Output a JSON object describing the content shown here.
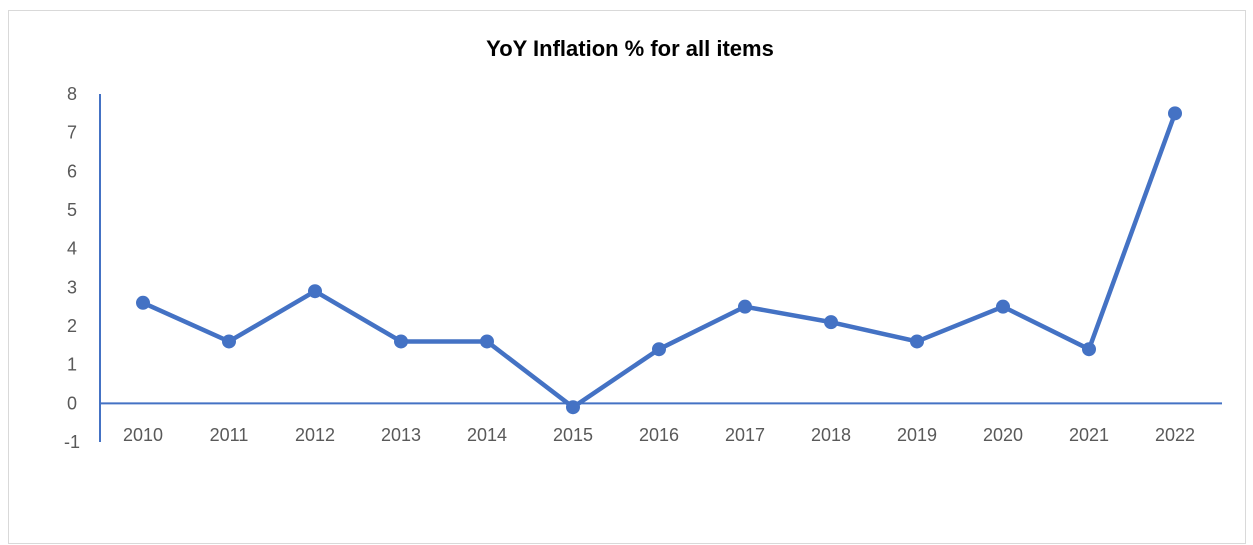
{
  "chart_data": {
    "type": "line",
    "title": "YoY Inflation % for all items",
    "xlabel": "",
    "ylabel": "",
    "categories": [
      "2010",
      "2011",
      "2012",
      "2013",
      "2014",
      "2015",
      "2016",
      "2017",
      "2018",
      "2019",
      "2020",
      "2021",
      "2022"
    ],
    "series": [
      {
        "values": [
          2.6,
          1.6,
          2.9,
          1.6,
          1.6,
          -0.1,
          1.4,
          2.5,
          2.1,
          1.6,
          2.5,
          1.4,
          7.5
        ]
      }
    ],
    "ylim": [
      -1,
      8
    ],
    "yticks": [
      "-1",
      "0",
      "1",
      "2",
      "3",
      "4",
      "5",
      "6",
      "7",
      "8"
    ],
    "grid": false,
    "legend": "none",
    "colors": {
      "line": "#4472c4",
      "axis": "#4472c4",
      "tick_text": "#595959"
    }
  }
}
